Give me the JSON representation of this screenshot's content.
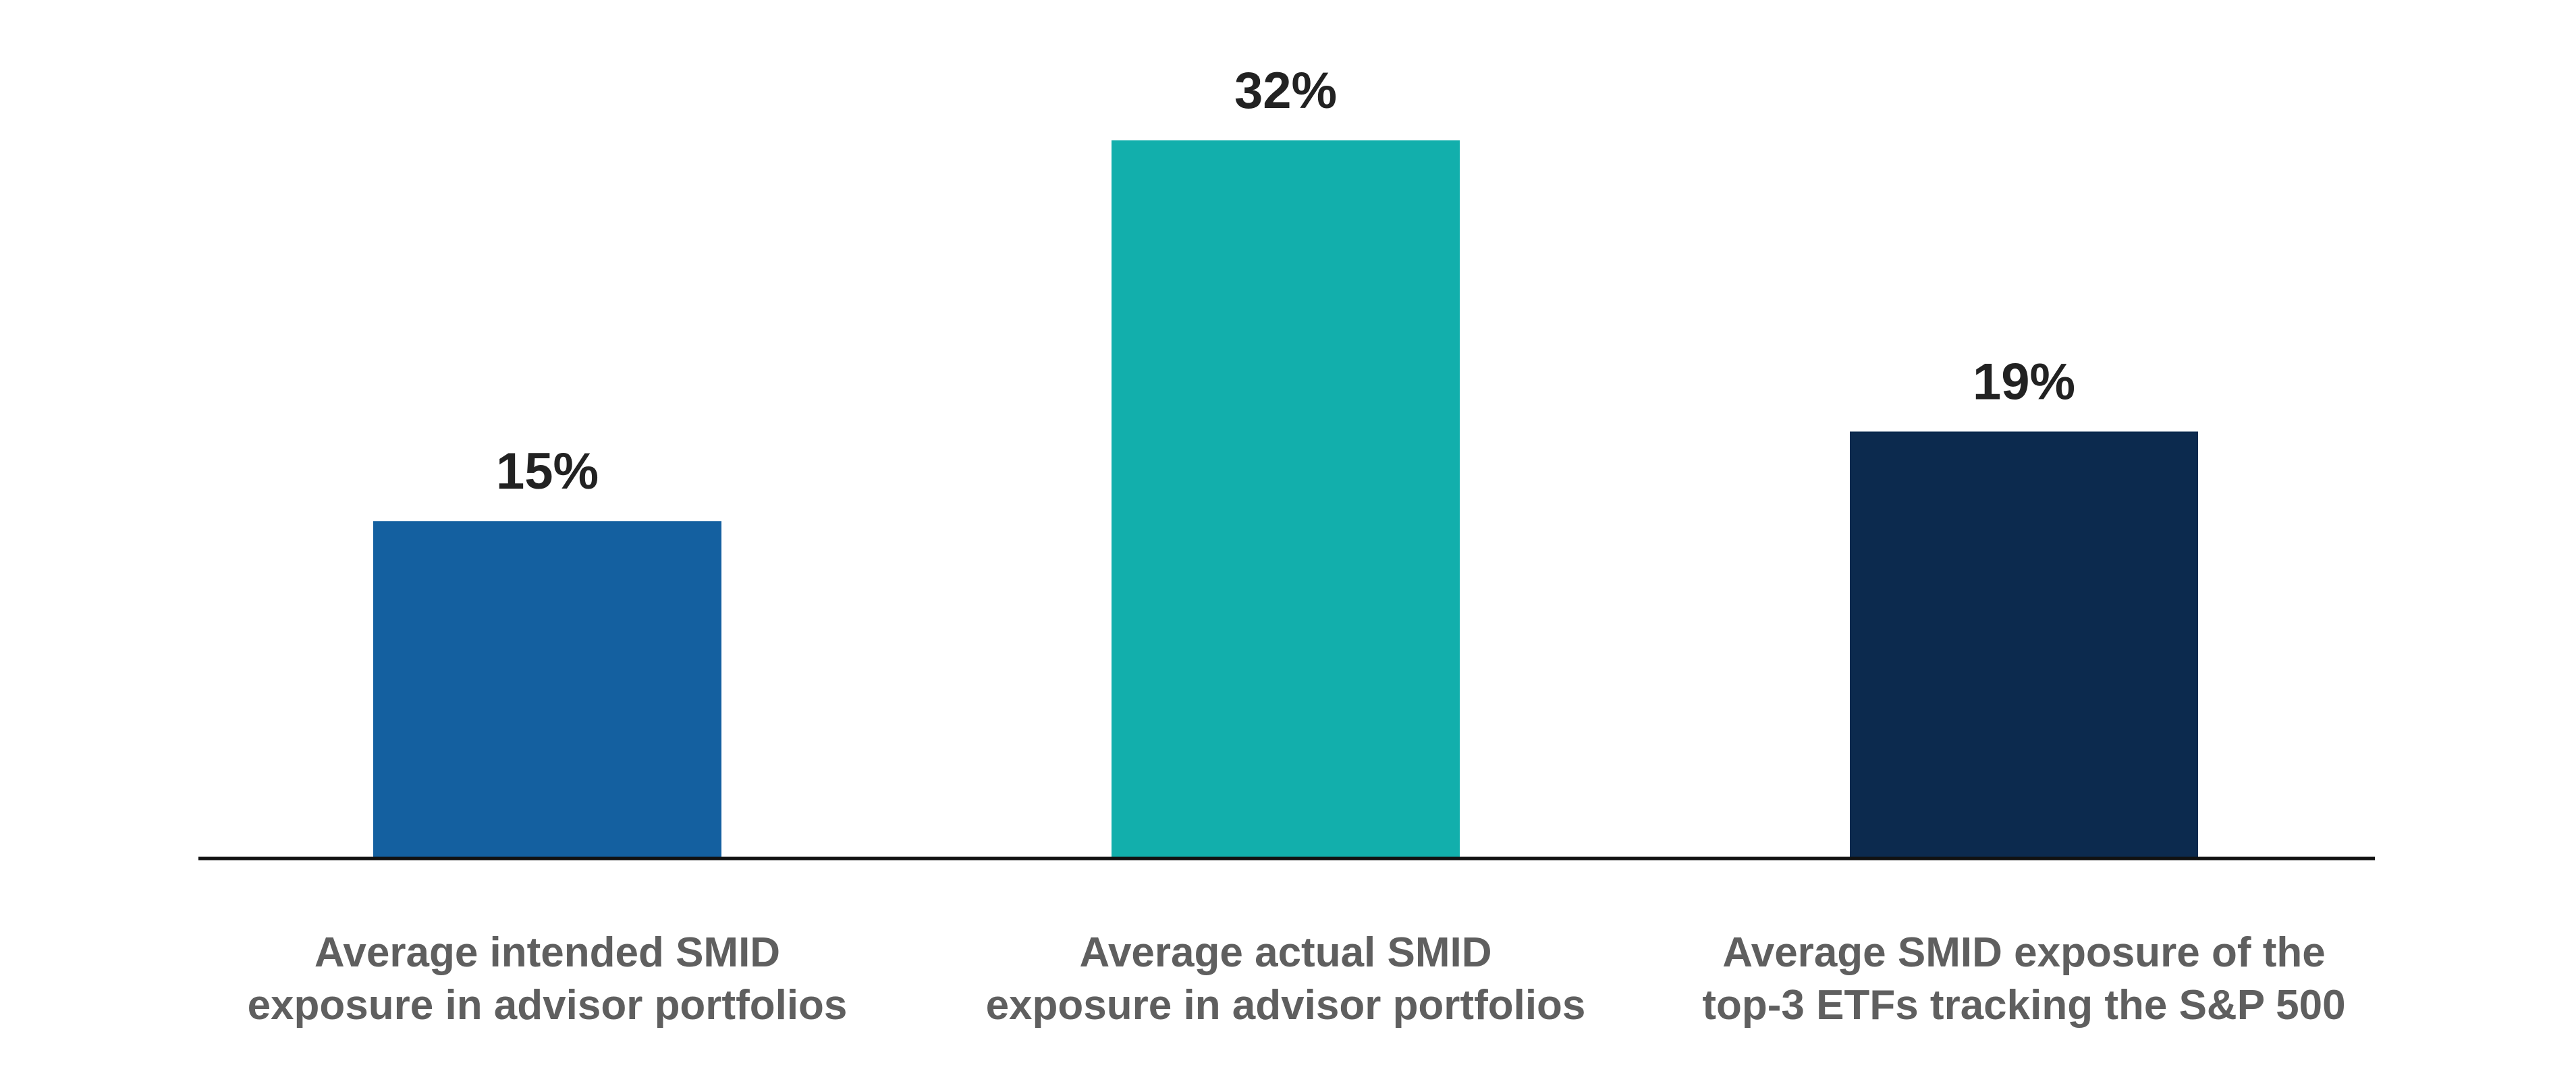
{
  "chart_data": {
    "type": "bar",
    "categories": [
      [
        "Average intended SMID",
        "exposure in advisor portfolios"
      ],
      [
        "Average actual SMID",
        "exposure in advisor portfolios"
      ],
      [
        "Average SMID exposure of the",
        "top-3 ETFs tracking the S&P 500"
      ]
    ],
    "values": [
      15,
      32,
      19
    ],
    "value_labels": [
      "15%",
      "32%",
      "19%"
    ],
    "colors": [
      "#1460a0",
      "#12afac",
      "#0c2a4e"
    ],
    "title": "",
    "xlabel": "",
    "ylabel": "",
    "ylim": [
      0,
      32
    ],
    "grid": false,
    "legend": "none"
  }
}
